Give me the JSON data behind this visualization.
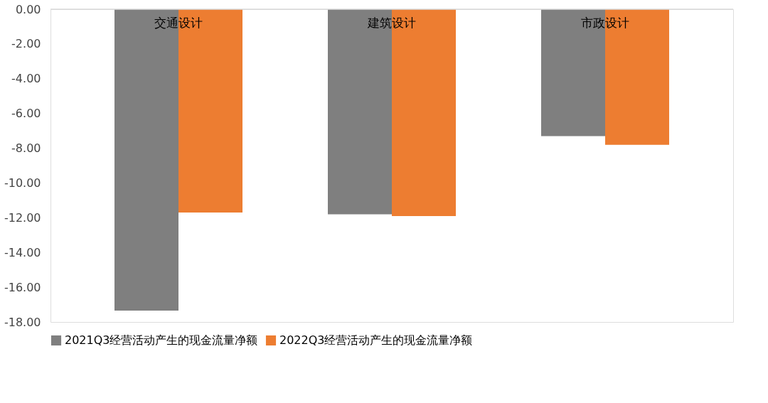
{
  "chart_data": {
    "type": "bar",
    "categories": [
      "交通设计",
      "建筑设计",
      "市政设计"
    ],
    "series": [
      {
        "name": "2021Q3经营活动产生的现金流量净额",
        "color": "#7f7f7f",
        "values": [
          -17.35,
          -11.8,
          -7.3
        ]
      },
      {
        "name": "2022Q3经营活动产生的现金流量净额",
        "color": "#ed7d31",
        "values": [
          -11.7,
          -11.9,
          -7.8
        ]
      }
    ],
    "ylim": [
      -18,
      0
    ],
    "yticks": [
      {
        "value": 0,
        "label": "0.00"
      },
      {
        "value": -2,
        "label": "-2.00"
      },
      {
        "value": -4,
        "label": "-4.00"
      },
      {
        "value": -6,
        "label": "-6.00"
      },
      {
        "value": -8,
        "label": "-8.00"
      },
      {
        "value": -10,
        "label": "-10.00"
      },
      {
        "value": -12,
        "label": "-12.00"
      },
      {
        "value": -14,
        "label": "-14.00"
      },
      {
        "value": -16,
        "label": "-16.00"
      },
      {
        "value": -18,
        "label": "-18.00"
      }
    ],
    "grid": false,
    "legend": "bottom"
  }
}
